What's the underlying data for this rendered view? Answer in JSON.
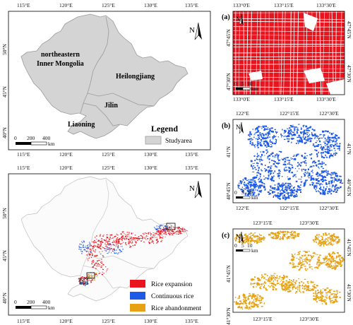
{
  "top_left": {
    "x_ticks": [
      "115°E",
      "120°E",
      "125°E",
      "130°E",
      "135°E"
    ],
    "y_ticks": [
      "50°N",
      "45°N",
      "40°N"
    ],
    "regions": {
      "inner_mongolia_1": "northeastern",
      "inner_mongolia_2": "Inner Mongolia",
      "heilongjiang": "Heilongjiang",
      "jilin": "Jilin",
      "liaoning": "Liaoning"
    },
    "north_label": "N",
    "scalebar": {
      "labels": [
        "0",
        "200",
        "400"
      ],
      "unit": "km"
    },
    "legend_title": "Legend",
    "legend_item": "Studyarea",
    "colors": {
      "study": "#d4d4d4",
      "outline": "#9a9a9a"
    }
  },
  "bottom_left": {
    "x_ticks": [
      "115°E",
      "120°E",
      "125°E",
      "130°E",
      "135°E"
    ],
    "y_ticks": [
      "50°N",
      "45°N",
      "40°N"
    ],
    "north_label": "N",
    "scalebar": {
      "labels": [
        "0",
        "200",
        "400"
      ],
      "unit": "km"
    },
    "boxes": [
      "(a)",
      "(b)",
      "(c)"
    ],
    "legend": [
      {
        "label": "Rice expansion",
        "color": "#e8141e"
      },
      {
        "label": "Continuous rice",
        "color": "#1e5ae6"
      },
      {
        "label": "Rice abandonment",
        "color": "#e6a114"
      }
    ]
  },
  "panel_a": {
    "tag": "(a)",
    "top_ticks": [
      "133°0'E",
      "133°15'E",
      "133°30'E"
    ],
    "bottom_ticks": [
      "133°0'E",
      "133°15'E",
      "133°30'E"
    ],
    "left_ticks": [
      "47°45'N",
      "47°30'N"
    ],
    "right_ticks": [
      "47°45'N",
      "47°30'N"
    ],
    "north_label": "N",
    "scalebar": {
      "labels": [
        "0",
        "5",
        "10"
      ],
      "unit": "km"
    }
  },
  "panel_b": {
    "tag": "(b)",
    "top_ticks": [
      "122°E",
      "122°15'E",
      "122°30'E"
    ],
    "bottom_ticks": [
      "122°E",
      "122°15'E",
      "122°30'E"
    ],
    "left_ticks": [
      "41°N",
      "40°45'N"
    ],
    "right_ticks": [
      "41°N",
      "40°45'N"
    ],
    "north_label": "N",
    "scalebar": {
      "labels": [
        "0",
        "5",
        "10"
      ],
      "unit": "km"
    }
  },
  "panel_c": {
    "tag": "(c)",
    "top_ticks": [
      "123°15'E",
      "123°30'E"
    ],
    "bottom_ticks": [
      "123°15'E",
      "123°30'E"
    ],
    "left_ticks": [
      "41°45'N",
      "41°30'N"
    ],
    "right_ticks": [
      "41°45'N",
      "41°30'N"
    ],
    "north_label": "N",
    "scalebar": {
      "labels": [
        "0",
        "5",
        "10"
      ],
      "unit": "km"
    }
  }
}
